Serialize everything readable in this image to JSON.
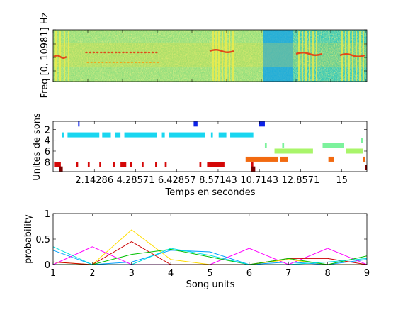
{
  "colors": {
    "spec_bg": "#36c8b6",
    "spec_noise": "#e8e845",
    "spec_band": "#e04a1a",
    "unit_blue": "#0c22e8",
    "unit_cyan": "#19d6f0",
    "unit_green1": "#7cf29c",
    "unit_green2": "#a9f56a",
    "unit_orange": "#f26a10",
    "unit_red": "#d40808",
    "unit_dark": "#7a0000",
    "series": [
      "#00a0ff",
      "#ff00ff",
      "#ffdd00",
      "#cc0000",
      "#00c000",
      "#00e0e0"
    ]
  },
  "chart_data": [
    {
      "type": "heatmap",
      "ylabel": "Freq [0, 10981] Hz"
    },
    {
      "type": "scatter",
      "ylabel": "Unites de sons",
      "xlabel": "Temps en secondes",
      "xlim": [
        0,
        16.3
      ],
      "ylim": [
        9.8,
        0.5
      ],
      "xticks": [
        2.14286,
        4.28571,
        6.42857,
        8.57143,
        10.7143,
        12.8571,
        15
      ],
      "xtick_labels": [
        "2.14286",
        "4.28571",
        "6.42857",
        "8.57143",
        "10.7143",
        "12.8571",
        "15"
      ],
      "yticks": [
        2,
        4,
        6,
        8
      ],
      "segments": [
        {
          "unit": 1,
          "start": 1.3,
          "end": 1.35,
          "color": "unit_blue"
        },
        {
          "unit": 1,
          "start": 7.3,
          "end": 7.5,
          "color": "unit_blue"
        },
        {
          "unit": 1,
          "start": 10.7,
          "end": 11.0,
          "color": "unit_blue"
        },
        {
          "unit": 3,
          "start": 0.45,
          "end": 0.55,
          "color": "unit_cyan"
        },
        {
          "unit": 3,
          "start": 0.75,
          "end": 2.4,
          "color": "unit_cyan"
        },
        {
          "unit": 3,
          "start": 2.55,
          "end": 3.0,
          "color": "unit_cyan"
        },
        {
          "unit": 3,
          "start": 3.2,
          "end": 3.5,
          "color": "unit_cyan"
        },
        {
          "unit": 3,
          "start": 3.7,
          "end": 5.4,
          "color": "unit_cyan"
        },
        {
          "unit": 3,
          "start": 5.65,
          "end": 5.8,
          "color": "unit_cyan"
        },
        {
          "unit": 3,
          "start": 6.0,
          "end": 7.9,
          "color": "unit_cyan"
        },
        {
          "unit": 3,
          "start": 8.2,
          "end": 8.3,
          "color": "unit_cyan"
        },
        {
          "unit": 3,
          "start": 8.6,
          "end": 9.0,
          "color": "unit_cyan"
        },
        {
          "unit": 3,
          "start": 9.2,
          "end": 10.4,
          "color": "unit_cyan"
        },
        {
          "unit": 5,
          "start": 11.0,
          "end": 11.1,
          "color": "unit_green1"
        },
        {
          "unit": 5,
          "start": 14.0,
          "end": 15.1,
          "color": "unit_green1"
        },
        {
          "unit": 4,
          "start": 16.0,
          "end": 16.1,
          "color": "unit_green1"
        },
        {
          "unit": 5,
          "start": 11.9,
          "end": 12.0,
          "color": "unit_green1"
        },
        {
          "unit": 6,
          "start": 11.5,
          "end": 13.5,
          "color": "unit_green2"
        },
        {
          "unit": 6,
          "start": 15.2,
          "end": 16.1,
          "color": "unit_green2"
        },
        {
          "unit": 7.5,
          "start": 10.0,
          "end": 11.7,
          "color": "unit_orange"
        },
        {
          "unit": 7.5,
          "start": 11.8,
          "end": 12.2,
          "color": "unit_orange"
        },
        {
          "unit": 7.5,
          "start": 14.3,
          "end": 14.6,
          "color": "unit_orange"
        },
        {
          "unit": 7.5,
          "start": 16.1,
          "end": 16.2,
          "color": "unit_orange"
        },
        {
          "unit": 8.5,
          "start": 0.05,
          "end": 0.4,
          "color": "unit_red"
        },
        {
          "unit": 8.5,
          "start": 1.2,
          "end": 1.3,
          "color": "unit_red"
        },
        {
          "unit": 8.5,
          "start": 1.8,
          "end": 1.9,
          "color": "unit_red"
        },
        {
          "unit": 8.5,
          "start": 2.4,
          "end": 2.5,
          "color": "unit_red"
        },
        {
          "unit": 8.5,
          "start": 3.1,
          "end": 3.2,
          "color": "unit_red"
        },
        {
          "unit": 8.5,
          "start": 3.5,
          "end": 3.8,
          "color": "unit_red"
        },
        {
          "unit": 8.5,
          "start": 4.0,
          "end": 4.1,
          "color": "unit_red"
        },
        {
          "unit": 8.5,
          "start": 4.6,
          "end": 4.7,
          "color": "unit_red"
        },
        {
          "unit": 8.5,
          "start": 5.3,
          "end": 5.4,
          "color": "unit_red"
        },
        {
          "unit": 8.5,
          "start": 5.8,
          "end": 5.9,
          "color": "unit_red"
        },
        {
          "unit": 8.5,
          "start": 7.6,
          "end": 7.7,
          "color": "unit_red"
        },
        {
          "unit": 8.5,
          "start": 8.0,
          "end": 8.9,
          "color": "unit_red"
        },
        {
          "unit": 8.5,
          "start": 10.3,
          "end": 10.4,
          "color": "unit_red"
        },
        {
          "unit": 9.3,
          "start": 0.3,
          "end": 0.5,
          "color": "unit_dark"
        },
        {
          "unit": 9.3,
          "start": 10.3,
          "end": 10.5,
          "color": "unit_dark"
        },
        {
          "unit": 9,
          "start": 16.2,
          "end": 16.3,
          "color": "unit_dark"
        }
      ]
    },
    {
      "type": "line",
      "xlabel": "Song units",
      "ylabel": "probability",
      "x": [
        1,
        2,
        3,
        4,
        5,
        6,
        7,
        8,
        9
      ],
      "xlim": [
        1,
        9
      ],
      "ylim": [
        0,
        1
      ],
      "yticks": [
        0,
        0.5,
        1
      ],
      "series": [
        {
          "color": "#00a0ff",
          "values": [
            0.28,
            0.0,
            0.05,
            0.28,
            0.25,
            0.0,
            0.05,
            0.0,
            0.1
          ]
        },
        {
          "color": "#ff00ff",
          "values": [
            0.0,
            0.35,
            0.0,
            0.0,
            0.0,
            0.32,
            0.0,
            0.32,
            0.0
          ]
        },
        {
          "color": "#ffdd00",
          "values": [
            0.05,
            0.0,
            0.68,
            0.1,
            0.0,
            0.0,
            0.1,
            0.0,
            0.0
          ]
        },
        {
          "color": "#cc0000",
          "values": [
            0.05,
            0.0,
            0.45,
            0.0,
            0.0,
            0.0,
            0.12,
            0.12,
            0.0
          ]
        },
        {
          "color": "#00c000",
          "values": [
            0.0,
            0.0,
            0.2,
            0.3,
            0.15,
            0.0,
            0.12,
            0.0,
            0.17
          ]
        },
        {
          "color": "#00e0e0",
          "values": [
            0.35,
            0.0,
            0.0,
            0.32,
            0.18,
            0.0,
            0.0,
            0.05,
            0.12
          ]
        }
      ]
    }
  ]
}
